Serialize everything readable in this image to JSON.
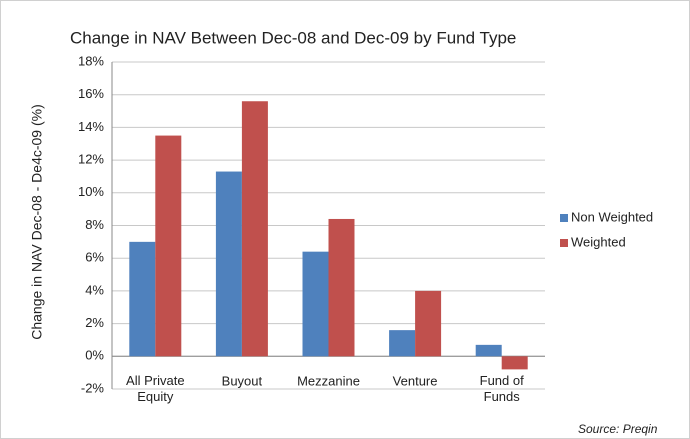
{
  "chart_data": {
    "type": "bar",
    "title": "Change in NAV Between Dec-08 and Dec-09 by Fund Type",
    "y_label": "Change in NAV Dec-08 - De4c-09 (%)",
    "source": "Source: Preqin",
    "categories": [
      "All Private\nEquity",
      "Buyout",
      "Mezzanine",
      "Venture",
      "Fund of\nFunds"
    ],
    "series": [
      {
        "name": "Non Weighted",
        "color": "#4f81bd",
        "values": [
          7.0,
          11.3,
          6.4,
          1.6,
          0.7
        ]
      },
      {
        "name": "Weighted",
        "color": "#c0504d",
        "values": [
          13.5,
          15.6,
          8.4,
          4.0,
          -0.8
        ]
      }
    ],
    "ylim": [
      -2,
      18
    ],
    "yticks": [
      {
        "value": -2,
        "label": "-2%"
      },
      {
        "value": 0,
        "label": "0%"
      },
      {
        "value": 2,
        "label": "2%"
      },
      {
        "value": 4,
        "label": "4%"
      },
      {
        "value": 6,
        "label": "6%"
      },
      {
        "value": 8,
        "label": "8%"
      },
      {
        "value": 10,
        "label": "10%"
      },
      {
        "value": 12,
        "label": "12%"
      },
      {
        "value": 14,
        "label": "14%"
      },
      {
        "value": 16,
        "label": "16%"
      },
      {
        "value": 18,
        "label": "18%"
      }
    ],
    "grid": true,
    "legend": "right"
  }
}
